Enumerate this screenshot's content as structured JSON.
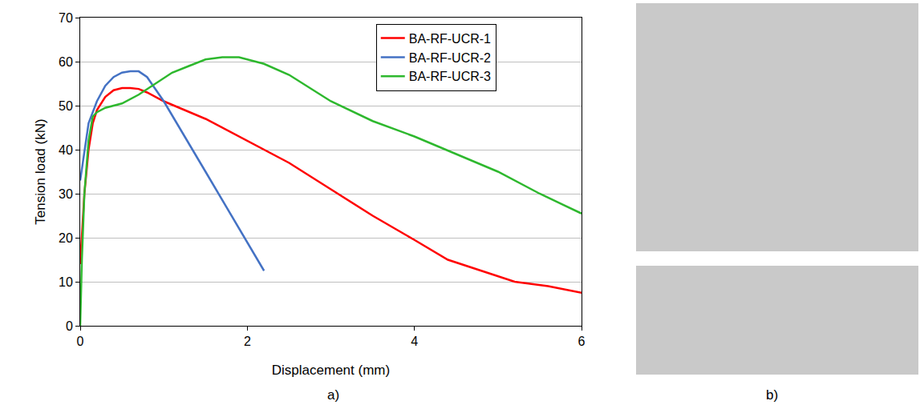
{
  "chart_data": {
    "type": "line",
    "x_label": "Displacement (mm)",
    "y_label": "Tension load (kN)",
    "xlim": [
      0,
      6
    ],
    "xticks": [
      0,
      2,
      4,
      6
    ],
    "ylim": [
      0,
      70
    ],
    "yticks": [
      0,
      10,
      20,
      30,
      40,
      50,
      60,
      70
    ],
    "grid": "y",
    "legend": "top right",
    "series": [
      {
        "name": "BA-RF-UCR-1",
        "color": "#ff0000",
        "x": [
          0,
          0.02,
          0.05,
          0.1,
          0.15,
          0.2,
          0.3,
          0.4,
          0.5,
          0.6,
          0.7,
          0.8,
          1,
          1.5,
          2,
          2.5,
          3,
          3.5,
          4,
          4.4,
          4.8,
          5.2,
          5.6,
          6
        ],
        "values": [
          14,
          20,
          30,
          40,
          46,
          49,
          52,
          53.5,
          54,
          54,
          53.8,
          53,
          51,
          47,
          42,
          37,
          31,
          25,
          19.5,
          15,
          12.5,
          10,
          9,
          7.5
        ]
      },
      {
        "name": "BA-RF-UCR-2",
        "color": "#4472c4",
        "x": [
          0,
          0.05,
          0.1,
          0.2,
          0.3,
          0.4,
          0.5,
          0.6,
          0.7,
          0.8,
          1,
          1.5,
          2,
          2.2
        ],
        "values": [
          33,
          40,
          46,
          51,
          54.5,
          56.5,
          57.5,
          57.8,
          57.8,
          56.5,
          51,
          35,
          19,
          12.5
        ]
      },
      {
        "name": "BA-RF-UCR-3",
        "color": "#2eb82e",
        "x": [
          0,
          0.02,
          0.05,
          0.1,
          0.15,
          0.2,
          0.3,
          0.5,
          0.7,
          0.9,
          1.1,
          1.3,
          1.5,
          1.7,
          1.9,
          2.2,
          2.5,
          3,
          3.5,
          4,
          4.5,
          5,
          5.5,
          6
        ],
        "values": [
          0,
          15,
          30,
          42,
          47.5,
          48.5,
          49.5,
          50.5,
          52.5,
          55,
          57.5,
          59,
          60.5,
          61,
          61,
          59.5,
          57,
          51,
          46.5,
          43,
          39,
          35,
          30,
          25.5
        ]
      }
    ]
  },
  "panel_labels": [
    "a)",
    "b)"
  ]
}
